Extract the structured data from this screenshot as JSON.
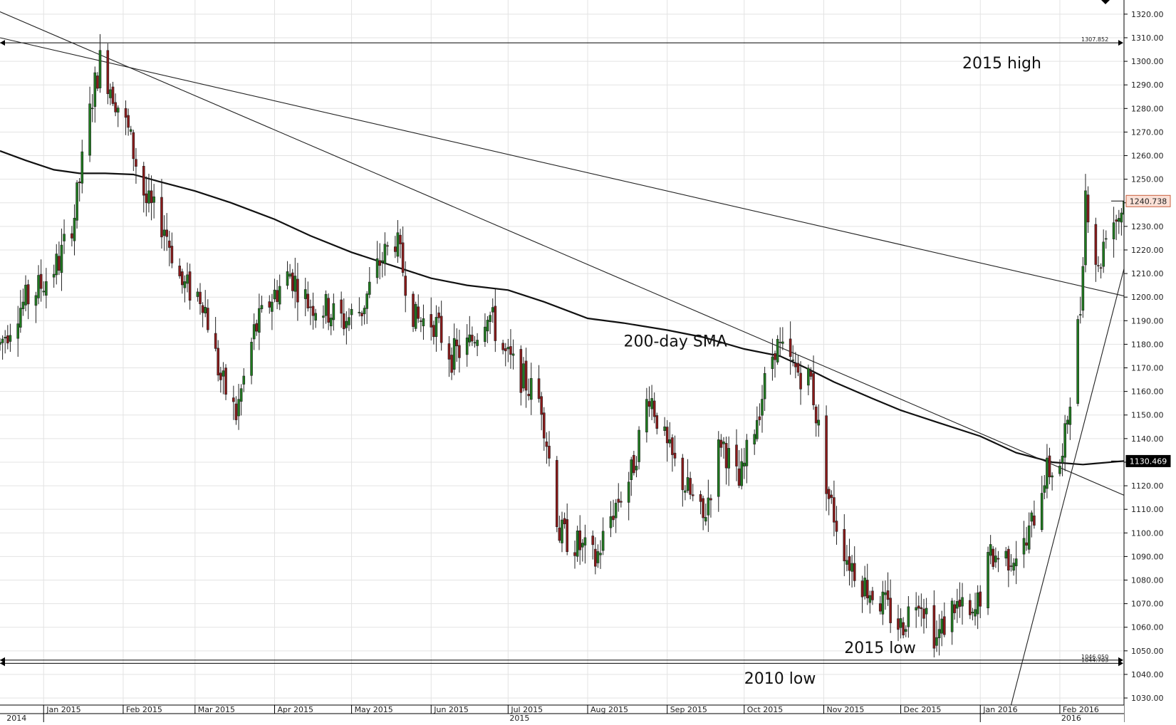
{
  "chart_data": {
    "type": "candlestick",
    "title": "",
    "xlabel": "",
    "ylabel": "",
    "ylim": [
      1027,
      1326
    ],
    "y_ticks": [
      1030,
      1040,
      1050,
      1060,
      1070,
      1080,
      1090,
      1100,
      1110,
      1120,
      1130,
      1140,
      1150,
      1160,
      1170,
      1180,
      1190,
      1200,
      1210,
      1220,
      1230,
      1240,
      1250,
      1260,
      1270,
      1280,
      1290,
      1300,
      1310,
      1320
    ],
    "y_tick_labels": [
      "1030.00",
      "1040.00",
      "1050.00",
      "1060.00",
      "1070.00",
      "1080.00",
      "1090.00",
      "1100.00",
      "1110.00",
      "1120.00",
      "1130.00",
      "1140.00",
      "1150.00",
      "1160.00",
      "1170.00",
      "1180.00",
      "1190.00",
      "1200.00",
      "1210.00",
      "1220.00",
      "1230.00",
      "1240.00",
      "1250.00",
      "1260.00",
      "1270.00",
      "1280.00",
      "1290.00",
      "1300.00",
      "1310.00",
      "1320.00"
    ],
    "x_range": [
      "2014-12-15",
      "2016-02-26"
    ],
    "month_ticks": [
      {
        "date": "2015-01-01",
        "label": "Jan 2015"
      },
      {
        "date": "2015-02-01",
        "label": "Feb 2015"
      },
      {
        "date": "2015-03-01",
        "label": "Mar 2015"
      },
      {
        "date": "2015-04-01",
        "label": "Apr 2015"
      },
      {
        "date": "2015-05-01",
        "label": "May 2015"
      },
      {
        "date": "2015-06-01",
        "label": "Jun 2015"
      },
      {
        "date": "2015-07-01",
        "label": "Jul 2015"
      },
      {
        "date": "2015-08-01",
        "label": "Aug 2015"
      },
      {
        "date": "2015-09-01",
        "label": "Sep 2015"
      },
      {
        "date": "2015-10-01",
        "label": "Oct 2015"
      },
      {
        "date": "2015-11-01",
        "label": "Nov 2015"
      },
      {
        "date": "2015-12-01",
        "label": "Dec 2015"
      },
      {
        "date": "2016-01-01",
        "label": "Jan 2016"
      },
      {
        "date": "2016-02-01",
        "label": "Feb 2016"
      }
    ],
    "year_labels": [
      {
        "date": "2014-12-17",
        "label": "2014"
      },
      {
        "date": "2015-07-01",
        "label": "2015"
      },
      {
        "date": "2016-02-01",
        "label": "2016"
      }
    ],
    "price_tags": [
      {
        "name": "last price",
        "value": 1240.738,
        "label": "1240.738",
        "style": "light"
      },
      {
        "name": "200-day SMA",
        "value": 1130.469,
        "label": "1130.469",
        "style": "dark"
      }
    ],
    "horizontal_levels": [
      {
        "name": "2015 high",
        "value": 1307.852,
        "label": "1307.852"
      },
      {
        "name": "2015 low",
        "value": 1046.05,
        "label": "1046.050"
      },
      {
        "name": "2010 low",
        "value": 1044.703,
        "label": "1044.703"
      }
    ],
    "annotations": [
      {
        "text": "2015 high",
        "date": "2015-12-25",
        "price": 1297
      },
      {
        "text": "200-day SMA",
        "date": "2015-08-15",
        "price": 1179
      },
      {
        "text": "2015 low",
        "date": "2015-11-09",
        "price": 1049
      },
      {
        "text": "2010 low",
        "date": "2015-10-01",
        "price": 1036
      }
    ],
    "trendlines": [
      {
        "name": "long-term downtrend",
        "from": {
          "date": "2014-12-15",
          "price": 1310
        },
        "to": {
          "date": "2016-02-26",
          "price": 1200.5
        }
      },
      {
        "name": "steep downtrend",
        "from": {
          "date": "2014-12-15",
          "price": 1321
        },
        "to": {
          "date": "2016-02-26",
          "price": 1116
        }
      },
      {
        "name": "uptrend support",
        "from": {
          "date": "2016-01-13",
          "price": 1027
        },
        "to": {
          "date": "2016-02-26",
          "price": 1212
        }
      }
    ],
    "sma_200": {
      "name": "200-day SMA",
      "points": [
        [
          "2014-12-15",
          1262
        ],
        [
          "2014-12-25",
          1258
        ],
        [
          "2015-01-05",
          1254
        ],
        [
          "2015-01-15",
          1252.5
        ],
        [
          "2015-01-25",
          1252.5
        ],
        [
          "2015-02-05",
          1252
        ],
        [
          "2015-02-15",
          1249
        ],
        [
          "2015-03-01",
          1245
        ],
        [
          "2015-03-15",
          1240
        ],
        [
          "2015-04-01",
          1233
        ],
        [
          "2015-04-15",
          1226
        ],
        [
          "2015-05-01",
          1219
        ],
        [
          "2015-05-15",
          1214
        ],
        [
          "2015-06-01",
          1208
        ],
        [
          "2015-06-15",
          1205
        ],
        [
          "2015-07-01",
          1203
        ],
        [
          "2015-07-15",
          1198
        ],
        [
          "2015-08-01",
          1191
        ],
        [
          "2015-08-15",
          1189
        ],
        [
          "2015-09-01",
          1186
        ],
        [
          "2015-09-15",
          1183
        ],
        [
          "2015-10-01",
          1178
        ],
        [
          "2015-10-15",
          1175
        ],
        [
          "2015-10-25",
          1170
        ],
        [
          "2015-11-05",
          1164
        ],
        [
          "2015-11-20",
          1157
        ],
        [
          "2015-12-01",
          1152
        ],
        [
          "2015-12-15",
          1147
        ],
        [
          "2016-01-01",
          1141
        ],
        [
          "2016-01-15",
          1134
        ],
        [
          "2016-01-29",
          1130
        ],
        [
          "2016-02-10",
          1129
        ],
        [
          "2016-02-26",
          1130.5
        ]
      ]
    },
    "price_anchors": [
      [
        "2014-12-15",
        1180
      ],
      [
        "2014-12-22",
        1195
      ],
      [
        "2014-12-31",
        1205
      ],
      [
        "2015-01-07",
        1215
      ],
      [
        "2015-01-13",
        1235
      ],
      [
        "2015-01-20",
        1285
      ],
      [
        "2015-01-23",
        1300
      ],
      [
        "2015-01-27",
        1290
      ],
      [
        "2015-02-03",
        1270
      ],
      [
        "2015-02-10",
        1240
      ],
      [
        "2015-02-17",
        1230
      ],
      [
        "2015-02-24",
        1205
      ],
      [
        "2015-03-04",
        1200
      ],
      [
        "2015-03-11",
        1165
      ],
      [
        "2015-03-17",
        1150
      ],
      [
        "2015-03-24",
        1185
      ],
      [
        "2015-03-31",
        1200
      ],
      [
        "2015-04-07",
        1210
      ],
      [
        "2015-04-14",
        1198
      ],
      [
        "2015-04-21",
        1195
      ],
      [
        "2015-04-28",
        1190
      ],
      [
        "2015-05-05",
        1195
      ],
      [
        "2015-05-12",
        1215
      ],
      [
        "2015-05-18",
        1225
      ],
      [
        "2015-05-26",
        1190
      ],
      [
        "2015-06-02",
        1190
      ],
      [
        "2015-06-09",
        1175
      ],
      [
        "2015-06-16",
        1180
      ],
      [
        "2015-06-23",
        1195
      ],
      [
        "2015-06-30",
        1175
      ],
      [
        "2015-07-07",
        1165
      ],
      [
        "2015-07-14",
        1155
      ],
      [
        "2015-07-21",
        1100
      ],
      [
        "2015-07-28",
        1095
      ],
      [
        "2015-08-04",
        1088
      ],
      [
        "2015-08-11",
        1110
      ],
      [
        "2015-08-18",
        1125
      ],
      [
        "2015-08-25",
        1160
      ],
      [
        "2015-09-01",
        1135
      ],
      [
        "2015-09-08",
        1120
      ],
      [
        "2015-09-15",
        1105
      ],
      [
        "2015-09-22",
        1140
      ],
      [
        "2015-09-29",
        1120
      ],
      [
        "2015-10-06",
        1150
      ],
      [
        "2015-10-13",
        1180
      ],
      [
        "2015-10-20",
        1170
      ],
      [
        "2015-10-27",
        1165
      ],
      [
        "2015-11-03",
        1115
      ],
      [
        "2015-11-10",
        1090
      ],
      [
        "2015-11-17",
        1078
      ],
      [
        "2015-11-24",
        1070
      ],
      [
        "2015-12-01",
        1060
      ],
      [
        "2015-12-08",
        1075
      ],
      [
        "2015-12-15",
        1055
      ],
      [
        "2015-12-22",
        1070
      ],
      [
        "2015-12-29",
        1062
      ],
      [
        "2016-01-05",
        1090
      ],
      [
        "2016-01-12",
        1090
      ],
      [
        "2016-01-19",
        1095
      ],
      [
        "2016-01-26",
        1125
      ],
      [
        "2016-02-02",
        1130
      ],
      [
        "2016-02-05",
        1160
      ],
      [
        "2016-02-09",
        1195
      ],
      [
        "2016-02-11",
        1245
      ],
      [
        "2016-02-16",
        1210
      ],
      [
        "2016-02-19",
        1230
      ],
      [
        "2016-02-24",
        1235
      ],
      [
        "2016-02-26",
        1240.7
      ]
    ]
  }
}
